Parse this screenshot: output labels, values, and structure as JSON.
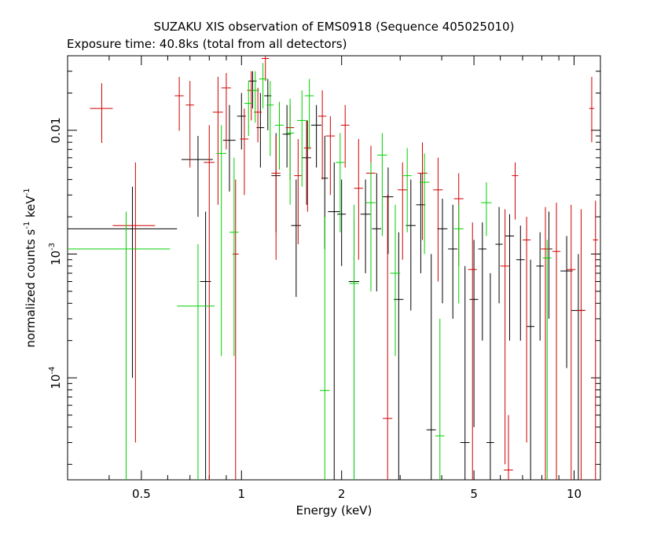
{
  "chart_data": {
    "type": "scatter",
    "title": "SUZAKU XIS observation of EMS0918 (Sequence 405025010)",
    "subtitle": "Exposure time: 40.8ks (total from all detectors)",
    "xlabel": "Energy (keV)",
    "ylabel": {
      "main": "normalized counts s",
      "sup1": "-1",
      "mid": " keV",
      "sup2": "-1"
    },
    "x_scale": "log",
    "y_scale": "log",
    "xlim": [
      0.3,
      12
    ],
    "ylim": [
      1.5e-05,
      0.04
    ],
    "grid": false,
    "x_ticks": [
      {
        "value": 0.5,
        "label": "0.5"
      },
      {
        "value": 1,
        "label": "1"
      },
      {
        "value": 2,
        "label": "2"
      },
      {
        "value": 5,
        "label": "5"
      },
      {
        "value": 10,
        "label": "10"
      }
    ],
    "y_ticks": [
      {
        "value": 0.01,
        "base": "0.01",
        "sup": ""
      },
      {
        "value": 0.001,
        "base": "10",
        "sup": "-3"
      },
      {
        "value": 0.0001,
        "base": "10",
        "sup": "-4"
      }
    ],
    "series": [
      {
        "color": "#000000",
        "points": [
          {
            "x": 0.47,
            "xlo": 0.3,
            "xhi": 0.64,
            "y": 0.0016,
            "ylo": 0.0001,
            "yhi": 0.0035
          },
          {
            "x": 0.74,
            "xlo": 0.66,
            "xhi": 0.82,
            "y": 0.0058,
            "ylo": 0.002,
            "yhi": 0.009
          },
          {
            "x": 0.78,
            "xlo": 0.75,
            "xhi": 0.81,
            "y": 0.0006,
            "ylo": 1.5e-05,
            "yhi": 0.0022
          },
          {
            "x": 0.92,
            "xlo": 0.88,
            "xhi": 0.96,
            "y": 0.0083,
            "ylo": 0.0032,
            "yhi": 0.016
          },
          {
            "x": 1.0,
            "xlo": 0.97,
            "xhi": 1.03,
            "y": 0.013,
            "ylo": 0.007,
            "yhi": 0.02
          },
          {
            "x": 1.08,
            "xlo": 1.05,
            "xhi": 1.11,
            "y": 0.025,
            "ylo": 0.015,
            "yhi": 0.03
          },
          {
            "x": 1.14,
            "xlo": 1.11,
            "xhi": 1.17,
            "y": 0.0105,
            "ylo": 0.005,
            "yhi": 0.02
          },
          {
            "x": 1.2,
            "xlo": 1.17,
            "xhi": 1.23,
            "y": 0.019,
            "ylo": 0.01,
            "yhi": 0.026
          },
          {
            "x": 1.27,
            "xlo": 1.23,
            "xhi": 1.31,
            "y": 0.0043,
            "ylo": 0.0015,
            "yhi": 0.0095
          },
          {
            "x": 1.37,
            "xlo": 1.33,
            "xhi": 1.41,
            "y": 0.0093,
            "ylo": 0.005,
            "yhi": 0.016
          },
          {
            "x": 1.46,
            "xlo": 1.41,
            "xhi": 1.51,
            "y": 0.0017,
            "ylo": 0.00045,
            "yhi": 0.004
          },
          {
            "x": 1.57,
            "xlo": 1.52,
            "xhi": 1.62,
            "y": 0.006,
            "ylo": 0.0025,
            "yhi": 0.012
          },
          {
            "x": 1.68,
            "xlo": 1.62,
            "xhi": 1.74,
            "y": 0.011,
            "ylo": 0.005,
            "yhi": 0.016
          },
          {
            "x": 1.78,
            "xlo": 1.74,
            "xhi": 1.82,
            "y": 0.0041,
            "ylo": 0.0011,
            "yhi": 0.009
          },
          {
            "x": 1.9,
            "xlo": 1.82,
            "xhi": 1.98,
            "y": 0.0022,
            "ylo": 1.5e-05,
            "yhi": 0.0055
          },
          {
            "x": 2.0,
            "xlo": 1.94,
            "xhi": 2.06,
            "y": 0.0021,
            "ylo": 0.0008,
            "yhi": 0.004
          },
          {
            "x": 2.18,
            "xlo": 2.1,
            "xhi": 2.26,
            "y": 0.0006,
            "ylo": 1.5e-05,
            "yhi": 0.0019
          },
          {
            "x": 2.36,
            "xlo": 2.28,
            "xhi": 2.44,
            "y": 0.0021,
            "ylo": 0.0007,
            "yhi": 0.004
          },
          {
            "x": 2.55,
            "xlo": 2.47,
            "xhi": 2.63,
            "y": 0.0016,
            "ylo": 0.0005,
            "yhi": 0.0045
          },
          {
            "x": 2.76,
            "xlo": 2.66,
            "xhi": 2.86,
            "y": 0.0029,
            "ylo": 0.001,
            "yhi": 0.005
          },
          {
            "x": 2.97,
            "xlo": 2.87,
            "xhi": 3.07,
            "y": 0.00043,
            "ylo": 1.5e-05,
            "yhi": 0.0015
          },
          {
            "x": 3.23,
            "xlo": 3.12,
            "xhi": 3.34,
            "y": 0.0017,
            "ylo": 0.00035,
            "yhi": 0.004
          },
          {
            "x": 3.46,
            "xlo": 3.35,
            "xhi": 3.57,
            "y": 0.0025,
            "ylo": 0.0007,
            "yhi": 0.0045
          },
          {
            "x": 3.72,
            "xlo": 3.6,
            "xhi": 3.84,
            "y": 3.8e-05,
            "ylo": 1.5e-05,
            "yhi": 0.001
          },
          {
            "x": 4.02,
            "xlo": 3.88,
            "xhi": 4.16,
            "y": 0.0016,
            "ylo": 0.0004,
            "yhi": 0.0028
          },
          {
            "x": 4.32,
            "xlo": 4.18,
            "xhi": 4.46,
            "y": 0.0011,
            "ylo": 0.0003,
            "yhi": 0.0025
          },
          {
            "x": 4.7,
            "xlo": 4.55,
            "xhi": 4.85,
            "y": 3e-05,
            "ylo": 1.5e-05,
            "yhi": 0.0008
          },
          {
            "x": 5.0,
            "xlo": 4.85,
            "xhi": 5.15,
            "y": 0.00043,
            "ylo": 4e-05,
            "yhi": 0.0013
          },
          {
            "x": 5.3,
            "xlo": 5.15,
            "xhi": 5.45,
            "y": 0.0011,
            "ylo": 0.0002,
            "yhi": 0.0018
          },
          {
            "x": 5.6,
            "xlo": 5.45,
            "xhi": 5.75,
            "y": 3e-05,
            "ylo": 1.5e-05,
            "yhi": 0.0007
          },
          {
            "x": 5.95,
            "xlo": 5.8,
            "xhi": 6.1,
            "y": 0.0012,
            "ylo": 0.0004,
            "yhi": 0.0024
          },
          {
            "x": 6.4,
            "xlo": 6.2,
            "xhi": 6.6,
            "y": 0.0014,
            "ylo": 0.0002,
            "yhi": 0.0021
          },
          {
            "x": 6.9,
            "xlo": 6.7,
            "xhi": 7.1,
            "y": 0.0009,
            "ylo": 0.0002,
            "yhi": 0.0017
          },
          {
            "x": 7.4,
            "xlo": 7.2,
            "xhi": 7.6,
            "y": 0.00026,
            "ylo": 1.5e-05,
            "yhi": 0.0009
          },
          {
            "x": 7.9,
            "xlo": 7.7,
            "xhi": 8.1,
            "y": 0.0008,
            "ylo": 0.0002,
            "yhi": 0.0015
          },
          {
            "x": 8.4,
            "xlo": 8.2,
            "xhi": 8.6,
            "y": 0.0011,
            "ylo": 0.0003,
            "yhi": 0.0022
          },
          {
            "x": 9.5,
            "xlo": 9.1,
            "xhi": 9.9,
            "y": 0.00073,
            "ylo": 0.00012,
            "yhi": 0.0014
          },
          {
            "x": 10.3,
            "xlo": 9.8,
            "xhi": 10.8,
            "y": 0.00035,
            "ylo": 1.5e-05,
            "yhi": 0.001
          }
        ]
      },
      {
        "color": "#d00000",
        "points": [
          {
            "x": 0.38,
            "xlo": 0.35,
            "xhi": 0.41,
            "y": 0.015,
            "ylo": 0.0079,
            "yhi": 0.024
          },
          {
            "x": 0.48,
            "xlo": 0.41,
            "xhi": 0.55,
            "y": 0.0017,
            "ylo": 3e-05,
            "yhi": 0.0055
          },
          {
            "x": 0.65,
            "xlo": 0.63,
            "xhi": 0.67,
            "y": 0.019,
            "ylo": 0.0099,
            "yhi": 0.027
          },
          {
            "x": 0.7,
            "xlo": 0.68,
            "xhi": 0.72,
            "y": 0.016,
            "ylo": 0.005,
            "yhi": 0.025
          },
          {
            "x": 0.8,
            "xlo": 0.77,
            "xhi": 0.83,
            "y": 0.0055,
            "ylo": 1.5e-05,
            "yhi": 0.011
          },
          {
            "x": 0.85,
            "xlo": 0.82,
            "xhi": 0.88,
            "y": 0.014,
            "ylo": 0.0025,
            "yhi": 0.027
          },
          {
            "x": 0.9,
            "xlo": 0.87,
            "xhi": 0.93,
            "y": 0.022,
            "ylo": 0.007,
            "yhi": 0.029
          },
          {
            "x": 0.96,
            "xlo": 0.94,
            "xhi": 0.98,
            "y": 0.001,
            "ylo": 1.5e-05,
            "yhi": 0.004
          },
          {
            "x": 1.02,
            "xlo": 0.99,
            "xhi": 1.05,
            "y": 0.0085,
            "ylo": 0.003,
            "yhi": 0.015
          },
          {
            "x": 1.07,
            "xlo": 1.04,
            "xhi": 1.1,
            "y": 0.021,
            "ylo": 0.012,
            "yhi": 0.03
          },
          {
            "x": 1.12,
            "xlo": 1.09,
            "xhi": 1.15,
            "y": 0.014,
            "ylo": 0.008,
            "yhi": 0.022
          },
          {
            "x": 1.18,
            "xlo": 1.15,
            "xhi": 1.21,
            "y": 0.038,
            "ylo": 0.025,
            "yhi": 0.04
          },
          {
            "x": 1.27,
            "xlo": 1.23,
            "xhi": 1.31,
            "y": 0.0045,
            "ylo": 0.0009,
            "yhi": 0.009
          },
          {
            "x": 1.4,
            "xlo": 1.36,
            "xhi": 1.44,
            "y": 0.0105,
            "ylo": 0.004,
            "yhi": 0.016
          },
          {
            "x": 1.48,
            "xlo": 1.44,
            "xhi": 1.52,
            "y": 0.0043,
            "ylo": 0.0012,
            "yhi": 0.0085
          },
          {
            "x": 1.58,
            "xlo": 1.54,
            "xhi": 1.62,
            "y": 0.0072,
            "ylo": 0.0022,
            "yhi": 0.012
          },
          {
            "x": 1.75,
            "xlo": 1.7,
            "xhi": 1.8,
            "y": 0.013,
            "ylo": 0.004,
            "yhi": 0.021
          },
          {
            "x": 1.85,
            "xlo": 1.79,
            "xhi": 1.91,
            "y": 0.009,
            "ylo": 0.003,
            "yhi": 0.013
          },
          {
            "x": 2.05,
            "xlo": 1.99,
            "xhi": 2.11,
            "y": 0.011,
            "ylo": 0.005,
            "yhi": 0.016
          },
          {
            "x": 2.25,
            "xlo": 2.18,
            "xhi": 2.32,
            "y": 0.0034,
            "ylo": 0.0009,
            "yhi": 0.0085
          },
          {
            "x": 2.45,
            "xlo": 2.37,
            "xhi": 2.53,
            "y": 0.0045,
            "ylo": 0.0013,
            "yhi": 0.0075
          },
          {
            "x": 2.75,
            "xlo": 2.66,
            "xhi": 2.84,
            "y": 4.7e-05,
            "ylo": 1.5e-05,
            "yhi": 0.003
          },
          {
            "x": 3.05,
            "xlo": 2.95,
            "xhi": 3.15,
            "y": 0.0033,
            "ylo": 0.0009,
            "yhi": 0.0055
          },
          {
            "x": 3.5,
            "xlo": 3.38,
            "xhi": 3.62,
            "y": 0.0045,
            "ylo": 0.0013,
            "yhi": 0.008
          },
          {
            "x": 3.9,
            "xlo": 3.77,
            "xhi": 4.03,
            "y": 0.0033,
            "ylo": 0.0006,
            "yhi": 0.006
          },
          {
            "x": 4.5,
            "xlo": 4.35,
            "xhi": 4.65,
            "y": 0.0028,
            "ylo": 0.0008,
            "yhi": 0.0045
          },
          {
            "x": 4.95,
            "xlo": 4.8,
            "xhi": 5.1,
            "y": 0.00075,
            "ylo": 1.5e-05,
            "yhi": 0.0018
          },
          {
            "x": 6.2,
            "xlo": 6.0,
            "xhi": 6.4,
            "y": 0.0008,
            "ylo": 2e-05,
            "yhi": 0.0023
          },
          {
            "x": 6.35,
            "xlo": 6.15,
            "xhi": 6.55,
            "y": 1.8e-05,
            "ylo": 1.5e-05,
            "yhi": 5e-05
          },
          {
            "x": 6.65,
            "xlo": 6.5,
            "xhi": 6.8,
            "y": 0.0043,
            "ylo": 0.0019,
            "yhi": 0.0055
          },
          {
            "x": 7.2,
            "xlo": 7.0,
            "xhi": 7.4,
            "y": 0.0013,
            "ylo": 3e-05,
            "yhi": 0.002
          },
          {
            "x": 8.2,
            "xlo": 7.95,
            "xhi": 8.45,
            "y": 0.0011,
            "ylo": 1.5e-05,
            "yhi": 0.0024
          },
          {
            "x": 8.85,
            "xlo": 8.6,
            "xhi": 9.1,
            "y": 0.00105,
            "ylo": 1.5e-05,
            "yhi": 0.0026
          },
          {
            "x": 9.8,
            "xlo": 9.5,
            "xhi": 10.1,
            "y": 0.00075,
            "ylo": 1.5e-05,
            "yhi": 0.0025
          },
          {
            "x": 10.5,
            "xlo": 10.2,
            "xhi": 10.8,
            "y": 0.00035,
            "ylo": 1.5e-05,
            "yhi": 0.0023
          },
          {
            "x": 11.3,
            "xlo": 11.1,
            "xhi": 11.5,
            "y": 0.015,
            "ylo": 0.008,
            "yhi": 0.027
          },
          {
            "x": 11.6,
            "xlo": 11.4,
            "xhi": 11.8,
            "y": 0.0013,
            "ylo": 1.5e-05,
            "yhi": 0.0027
          }
        ]
      },
      {
        "color": "#00d000",
        "points": [
          {
            "x": 0.45,
            "xlo": 0.3,
            "xhi": 0.61,
            "y": 0.0011,
            "ylo": 1.5e-05,
            "yhi": 0.0022
          },
          {
            "x": 0.74,
            "xlo": 0.64,
            "xhi": 0.83,
            "y": 0.00038,
            "ylo": 1.5e-05,
            "yhi": 0.0012
          },
          {
            "x": 0.87,
            "xlo": 0.84,
            "xhi": 0.9,
            "y": 0.0065,
            "ylo": 0.00015,
            "yhi": 0.011
          },
          {
            "x": 0.95,
            "xlo": 0.92,
            "xhi": 0.98,
            "y": 0.0015,
            "ylo": 0.00015,
            "yhi": 0.006
          },
          {
            "x": 1.05,
            "xlo": 1.02,
            "xhi": 1.08,
            "y": 0.0165,
            "ylo": 0.009,
            "yhi": 0.025
          },
          {
            "x": 1.1,
            "xlo": 1.07,
            "xhi": 1.13,
            "y": 0.021,
            "ylo": 0.0115,
            "yhi": 0.03
          },
          {
            "x": 1.16,
            "xlo": 1.13,
            "xhi": 1.19,
            "y": 0.026,
            "ylo": 0.015,
            "yhi": 0.035
          },
          {
            "x": 1.22,
            "xlo": 1.19,
            "xhi": 1.25,
            "y": 0.016,
            "ylo": 0.0062,
            "yhi": 0.025
          },
          {
            "x": 1.3,
            "xlo": 1.26,
            "xhi": 1.34,
            "y": 0.011,
            "ylo": 0.0048,
            "yhi": 0.017
          },
          {
            "x": 1.4,
            "xlo": 1.36,
            "xhi": 1.44,
            "y": 0.0095,
            "ylo": 0.0025,
            "yhi": 0.018
          },
          {
            "x": 1.52,
            "xlo": 1.47,
            "xhi": 1.57,
            "y": 0.012,
            "ylo": 0.0035,
            "yhi": 0.021
          },
          {
            "x": 1.6,
            "xlo": 1.55,
            "xhi": 1.65,
            "y": 0.019,
            "ylo": 0.007,
            "yhi": 0.026
          },
          {
            "x": 1.78,
            "xlo": 1.72,
            "xhi": 1.84,
            "y": 7.9e-05,
            "ylo": 1.5e-05,
            "yhi": 0.002
          },
          {
            "x": 1.98,
            "xlo": 1.92,
            "xhi": 2.04,
            "y": 0.0055,
            "ylo": 0.0015,
            "yhi": 0.0095
          },
          {
            "x": 2.18,
            "xlo": 2.11,
            "xhi": 2.25,
            "y": 0.00058,
            "ylo": 1.5e-05,
            "yhi": 0.0025
          },
          {
            "x": 2.45,
            "xlo": 2.37,
            "xhi": 2.53,
            "y": 0.0026,
            "ylo": 0.0005,
            "yhi": 0.0055
          },
          {
            "x": 2.65,
            "xlo": 2.56,
            "xhi": 2.74,
            "y": 0.0063,
            "ylo": 0.0014,
            "yhi": 0.0095
          },
          {
            "x": 2.9,
            "xlo": 2.8,
            "xhi": 3.0,
            "y": 0.0007,
            "ylo": 0.00015,
            "yhi": 0.0025
          },
          {
            "x": 3.15,
            "xlo": 3.05,
            "xhi": 3.25,
            "y": 0.0043,
            "ylo": 0.0015,
            "yhi": 0.0072
          },
          {
            "x": 3.55,
            "xlo": 3.43,
            "xhi": 3.67,
            "y": 0.0038,
            "ylo": 0.001,
            "yhi": 0.0065
          },
          {
            "x": 3.95,
            "xlo": 3.82,
            "xhi": 4.08,
            "y": 3.4e-05,
            "ylo": 1.5e-05,
            "yhi": 0.0003
          },
          {
            "x": 4.5,
            "xlo": 4.35,
            "xhi": 4.65,
            "y": 0.0016,
            "ylo": 0.0004,
            "yhi": 0.0025
          },
          {
            "x": 5.45,
            "xlo": 5.25,
            "xhi": 5.65,
            "y": 0.0026,
            "ylo": 0.0014,
            "yhi": 0.0038
          },
          {
            "x": 8.3,
            "xlo": 8.05,
            "xhi": 8.55,
            "y": 0.00093,
            "ylo": 1.5e-05,
            "yhi": 0.0013
          }
        ]
      }
    ]
  }
}
